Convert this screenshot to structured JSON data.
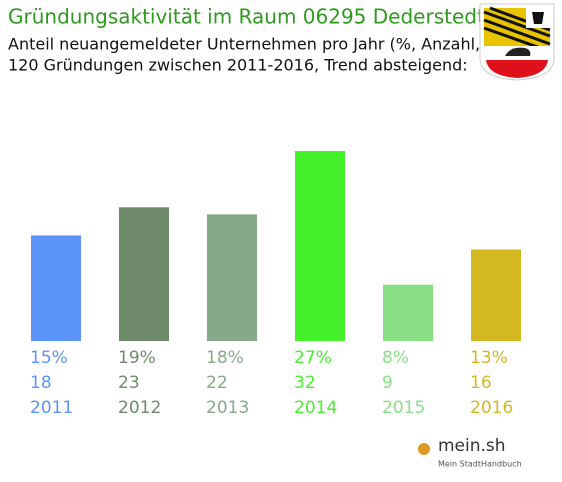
{
  "chart_data": {
    "type": "bar",
    "title": "Gründungsaktivität im Raum 06295 Dederstedt",
    "subtitle": [
      "Anteil neuangemeldeter Unternehmen pro Jahr (%, Anzahl, Jahr)",
      "120 Gründungen zwischen 2011-2016, Trend absteigend:"
    ],
    "categories": [
      "2011",
      "2012",
      "2013",
      "2014",
      "2015",
      "2016"
    ],
    "values": [
      15,
      19,
      18,
      27,
      8,
      13
    ],
    "value_labels": [
      "15%",
      "19%",
      "18%",
      "27%",
      "8%",
      "13%"
    ],
    "counts": [
      18,
      23,
      22,
      32,
      9,
      16
    ],
    "colors": [
      "#5b95f9",
      "#6e8a6b",
      "#86aa89",
      "#44f12a",
      "#8adf86",
      "#d4b822"
    ]
  },
  "footer": {
    "brand": "mein.sh",
    "tagline": "Mein StadtHandbuch"
  }
}
